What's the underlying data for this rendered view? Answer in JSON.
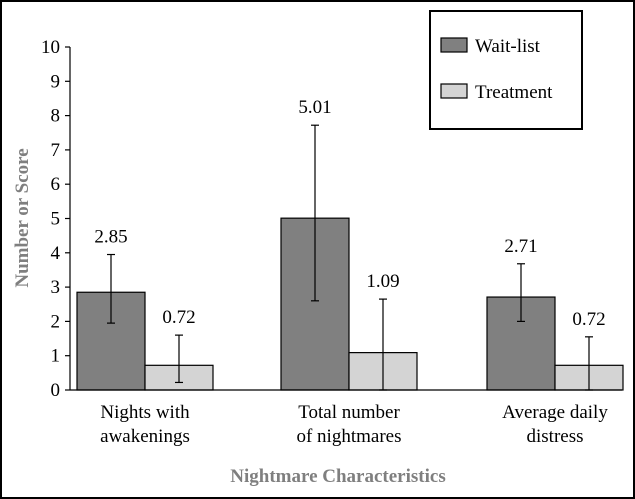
{
  "chart_data": {
    "type": "bar",
    "title": "",
    "xlabel": "Nightmare Characteristics",
    "ylabel": "Number or Score",
    "ylim": [
      0,
      10
    ],
    "yticks": [
      0,
      1,
      2,
      3,
      4,
      5,
      6,
      7,
      8,
      9,
      10
    ],
    "categories": [
      [
        "Nights with",
        "awakenings"
      ],
      [
        "Total number",
        "of nightmares"
      ],
      [
        "Average daily",
        "distress"
      ]
    ],
    "series": [
      {
        "name": "Wait-list",
        "color": "#808080",
        "values": [
          2.85,
          5.01,
          2.71
        ],
        "labels": [
          "2.85",
          "5.01",
          "2.71"
        ],
        "err_low": [
          1.95,
          2.6,
          2.0
        ],
        "err_high": [
          3.95,
          7.72,
          3.68
        ]
      },
      {
        "name": "Treatment",
        "color": "#d4d4d4",
        "values": [
          0.72,
          1.09,
          0.72
        ],
        "labels": [
          "0.72",
          "1.09",
          "0.72"
        ],
        "err_low": [
          0.22,
          0.0,
          0.0
        ],
        "err_high": [
          1.6,
          2.65,
          1.55
        ]
      }
    ],
    "legend": "top-right",
    "grid": false
  }
}
